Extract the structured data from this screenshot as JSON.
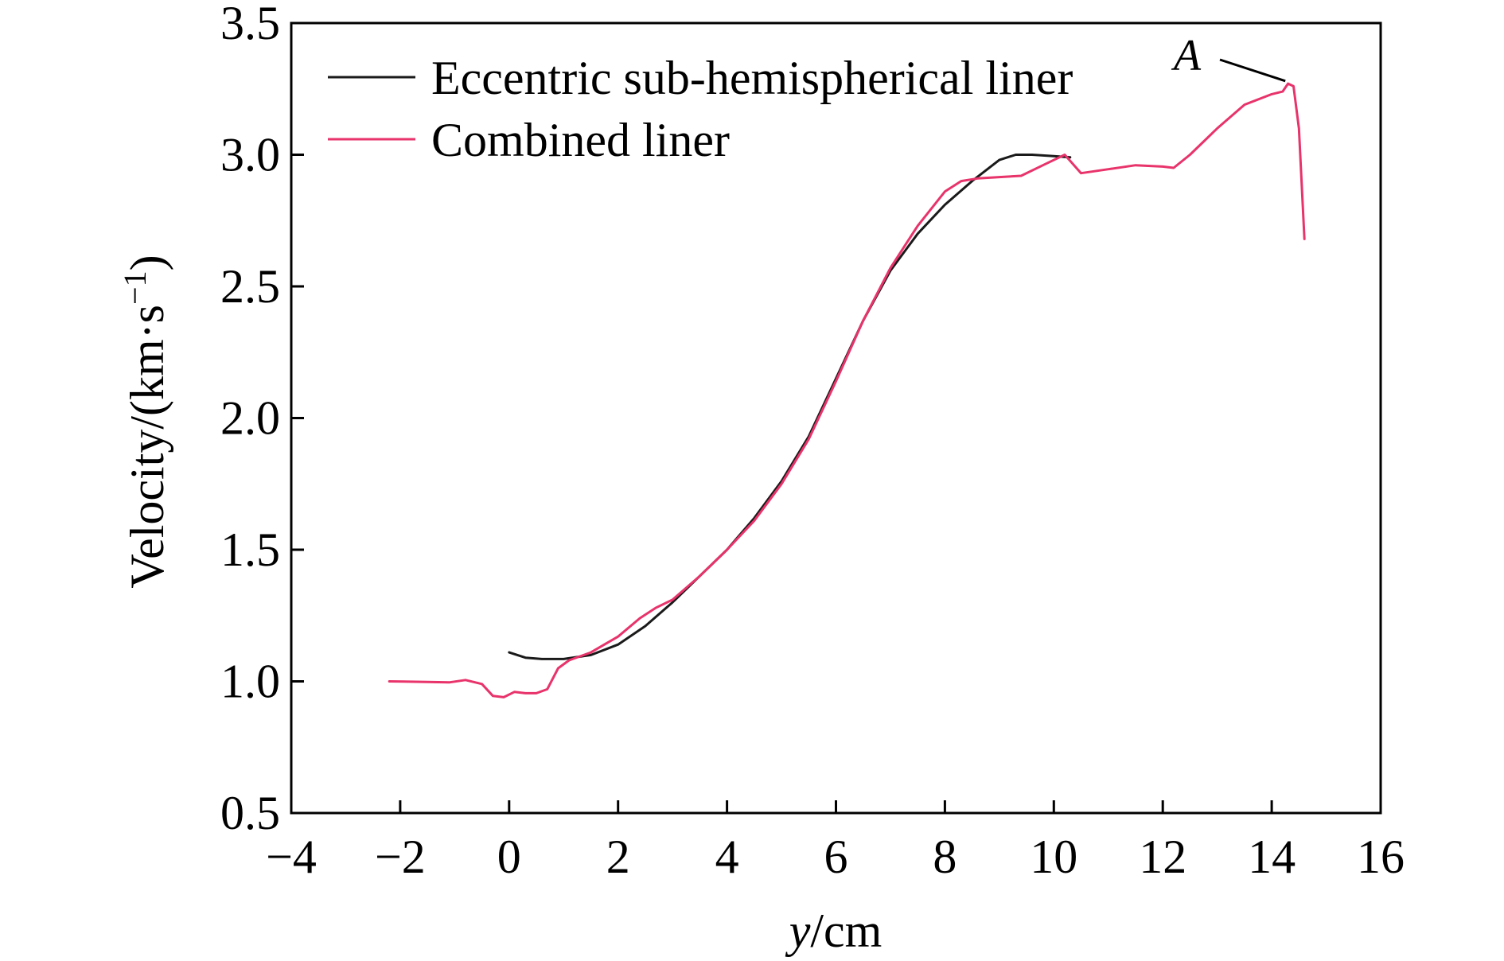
{
  "chart_data": {
    "type": "line",
    "xlabel": {
      "italic": "y",
      "rest": "/cm"
    },
    "ylabel": {
      "main": "Velocity/(km·s",
      "sup": "−1",
      "close": ")"
    },
    "xlim": [
      -4,
      16
    ],
    "ylim": [
      0.5,
      3.5
    ],
    "xticks": [
      -4,
      -2,
      0,
      2,
      4,
      6,
      8,
      10,
      12,
      14,
      16
    ],
    "xtick_labels": [
      "−4",
      "−2",
      "0",
      "2",
      "4",
      "6",
      "8",
      "10",
      "12",
      "14",
      "16"
    ],
    "yticks": [
      0.5,
      1.0,
      1.5,
      2.0,
      2.5,
      3.0,
      3.5
    ],
    "ytick_labels": [
      "0.5",
      "1.0",
      "1.5",
      "2.0",
      "2.5",
      "3.0",
      "3.5"
    ],
    "grid": false,
    "legend_position": "top-left",
    "series": [
      {
        "name": "Eccentric sub-hemispherical liner",
        "color": "#1a1a1a",
        "x": [
          0,
          0.3,
          0.6,
          1.0,
          1.5,
          2.0,
          2.5,
          3.0,
          3.5,
          4.0,
          4.5,
          5.0,
          5.5,
          6.0,
          6.5,
          7.0,
          7.5,
          8.0,
          8.5,
          9.0,
          9.3,
          9.6,
          10.0,
          10.3
        ],
        "y": [
          1.11,
          1.09,
          1.085,
          1.085,
          1.1,
          1.14,
          1.21,
          1.3,
          1.4,
          1.5,
          1.62,
          1.76,
          1.93,
          2.15,
          2.37,
          2.56,
          2.7,
          2.81,
          2.9,
          2.98,
          3.0,
          3.0,
          2.995,
          2.99
        ]
      },
      {
        "name": "Combined liner",
        "color": "#e8336b",
        "x": [
          -2.2,
          -1.5,
          -1.1,
          -0.8,
          -0.5,
          -0.3,
          -0.1,
          0.1,
          0.3,
          0.5,
          0.7,
          0.9,
          1.1,
          1.5,
          2.0,
          2.4,
          2.7,
          3.0,
          3.5,
          4.0,
          4.5,
          5.0,
          5.5,
          6.0,
          6.5,
          7.0,
          7.5,
          8.0,
          8.3,
          8.6,
          9.0,
          9.4,
          9.8,
          10.2,
          10.5,
          11.0,
          11.5,
          12.0,
          12.2,
          12.5,
          13.0,
          13.5,
          14.0,
          14.2,
          14.3,
          14.4,
          14.5,
          14.6
        ],
        "y": [
          1.0,
          0.998,
          0.996,
          1.005,
          0.99,
          0.945,
          0.94,
          0.96,
          0.955,
          0.955,
          0.97,
          1.05,
          1.08,
          1.11,
          1.17,
          1.24,
          1.28,
          1.31,
          1.4,
          1.5,
          1.61,
          1.75,
          1.92,
          2.14,
          2.37,
          2.57,
          2.73,
          2.86,
          2.9,
          2.91,
          2.915,
          2.92,
          2.96,
          3.0,
          2.93,
          2.945,
          2.96,
          2.955,
          2.95,
          3.0,
          3.1,
          3.19,
          3.23,
          3.24,
          3.27,
          3.26,
          3.1,
          2.68
        ]
      }
    ],
    "annotations": [
      {
        "text": "A",
        "x": 14.25,
        "y": 3.28
      }
    ]
  }
}
